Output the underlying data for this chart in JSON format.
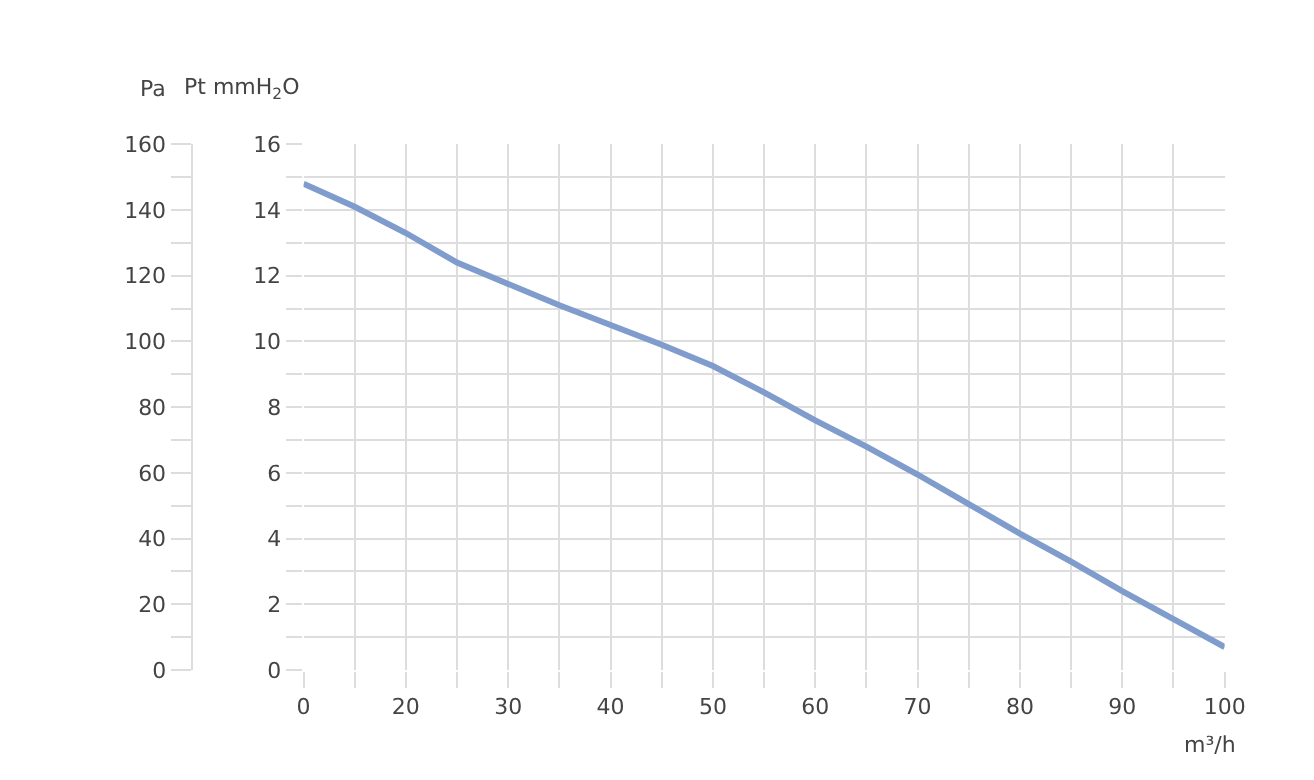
{
  "chart_data": {
    "type": "line",
    "xlabel": "m³/h",
    "ylabel": "Pt mmH$_{2}$O",
    "y2label": "Pa",
    "categories": [
      "0",
      null,
      "20",
      null,
      "30",
      null,
      "40",
      null,
      "50",
      null,
      "60",
      null,
      "70",
      null,
      "80",
      null,
      "90",
      null,
      "100"
    ],
    "series": [
      {
        "color": "#7f9ccc",
        "values": [
          14.8,
          14.1,
          13.3,
          12.4,
          11.75,
          11.1,
          10.5,
          9.9,
          9.25,
          8.45,
          7.6,
          6.8,
          5.95,
          5.05,
          4.15,
          3.3,
          2.4,
          1.55,
          0.7
        ]
      }
    ],
    "ylim": [
      0,
      16
    ],
    "yticks": [
      0,
      {
        "value": 1,
        "label": null
      },
      2,
      {
        "value": 3,
        "label": null
      },
      4,
      {
        "value": 5,
        "label": null
      },
      6,
      {
        "value": 7,
        "label": null
      },
      8,
      {
        "value": 9,
        "label": null
      },
      10,
      {
        "value": 11,
        "label": null
      },
      12,
      {
        "value": 13,
        "label": null
      },
      14,
      {
        "value": 15,
        "label": null
      },
      16
    ],
    "y2lim": [
      0,
      160
    ],
    "y2ticks": [
      0,
      {
        "value": 10,
        "label": null
      },
      20,
      {
        "value": 30,
        "label": null
      },
      40,
      {
        "value": 50,
        "label": null
      },
      60,
      {
        "value": 70,
        "label": null
      },
      80,
      {
        "value": 90,
        "label": null
      },
      100,
      {
        "value": 110,
        "label": null
      },
      120,
      {
        "value": 130,
        "label": null
      },
      140,
      {
        "value": 150,
        "label": null
      },
      160
    ],
    "grid": true,
    "legend": false,
    "marker": "none",
    "line_style": "solid"
  }
}
